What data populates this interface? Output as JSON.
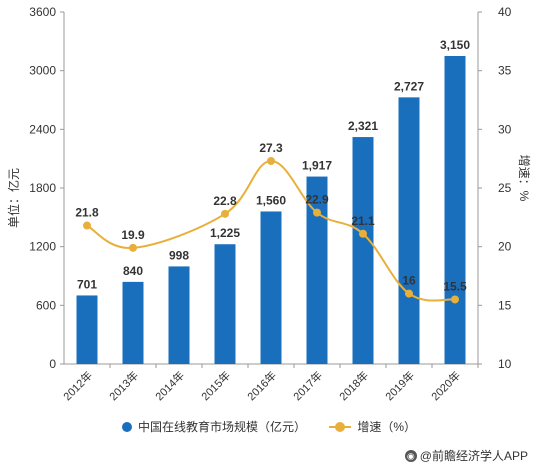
{
  "chart_data": {
    "type": "bar",
    "categories": [
      "2012年",
      "2013年",
      "2014年",
      "2015年",
      "2016年",
      "2017年",
      "2018年",
      "2019年",
      "2020年"
    ],
    "series": [
      {
        "name": "中国在线教育市场规模（亿元）",
        "type": "bar",
        "axis": "left",
        "values": [
          701,
          840,
          998,
          1225,
          1560,
          1917,
          2321,
          2727,
          3150
        ],
        "labels": [
          "701",
          "840",
          "998",
          "1,225",
          "1,560",
          "1,917",
          "2,321",
          "2,727",
          "3,150"
        ]
      },
      {
        "name": "增速（%）",
        "type": "line",
        "axis": "right",
        "values": [
          21.8,
          19.9,
          null,
          22.8,
          27.3,
          22.9,
          21.1,
          16,
          15.5
        ],
        "labels": [
          "21.8",
          "19.9",
          "",
          "22.8",
          "27.3",
          "22.9",
          "21.1",
          "16",
          "15.5"
        ]
      }
    ],
    "ylabel": "单位：亿元",
    "y2label": "增速：%",
    "ylim": [
      0,
      3600
    ],
    "yticks": [
      "0",
      "600",
      "1200",
      "1800",
      "2400",
      "3000",
      "3600"
    ],
    "y2lim": [
      10,
      40
    ],
    "y2ticks": [
      "10",
      "15",
      "20",
      "25",
      "30",
      "35",
      "40"
    ],
    "grid": false,
    "legend_position": "bottom"
  },
  "colors": {
    "bar": "#1a6fbd",
    "line": "#e8b03a",
    "axis": "#999999",
    "text": "#333333"
  },
  "legend": {
    "bar_label": "中国在线教育市场规模（亿元）",
    "line_label": "增速（%）"
  },
  "footer": {
    "source": "@前瞻经济学人APP"
  }
}
